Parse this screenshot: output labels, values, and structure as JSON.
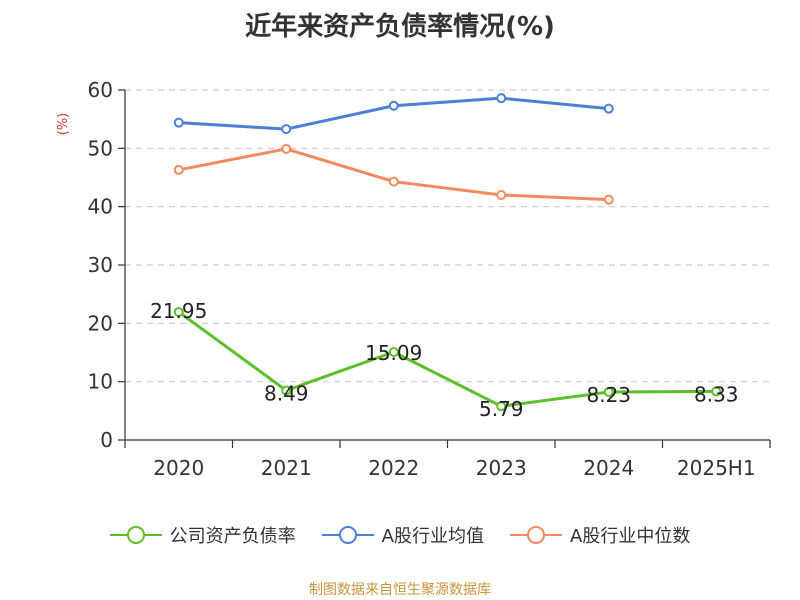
{
  "title": "近年来资产负债率情况(%)",
  "source": "制图数据来自恒生聚源数据库",
  "chart_data": {
    "type": "line",
    "title": "近年来资产负债率情况(%)",
    "ylabel": "(%)",
    "xlabel": "",
    "categories": [
      "2020",
      "2021",
      "2022",
      "2023",
      "2024",
      "2025H1"
    ],
    "ylim": [
      0,
      60
    ],
    "yticks": [
      0,
      10,
      20,
      30,
      40,
      50,
      60
    ],
    "grid": true,
    "legend_position": "bottom",
    "series": [
      {
        "name": "公司资产负债率",
        "color": "#5cbf2a",
        "values": [
          21.95,
          8.49,
          15.09,
          5.79,
          8.23,
          8.33
        ],
        "labels": [
          "21.95",
          "8.49",
          "15.09",
          "5.79",
          "8.23",
          "8.33"
        ]
      },
      {
        "name": "A股行业均值",
        "color": "#4c7fd8",
        "values": [
          54.4,
          53.3,
          57.3,
          58.6,
          56.8,
          null
        ]
      },
      {
        "name": "A股行业中位数",
        "color": "#f4895f",
        "values": [
          46.3,
          49.9,
          44.3,
          42.0,
          41.2,
          null
        ]
      }
    ]
  }
}
